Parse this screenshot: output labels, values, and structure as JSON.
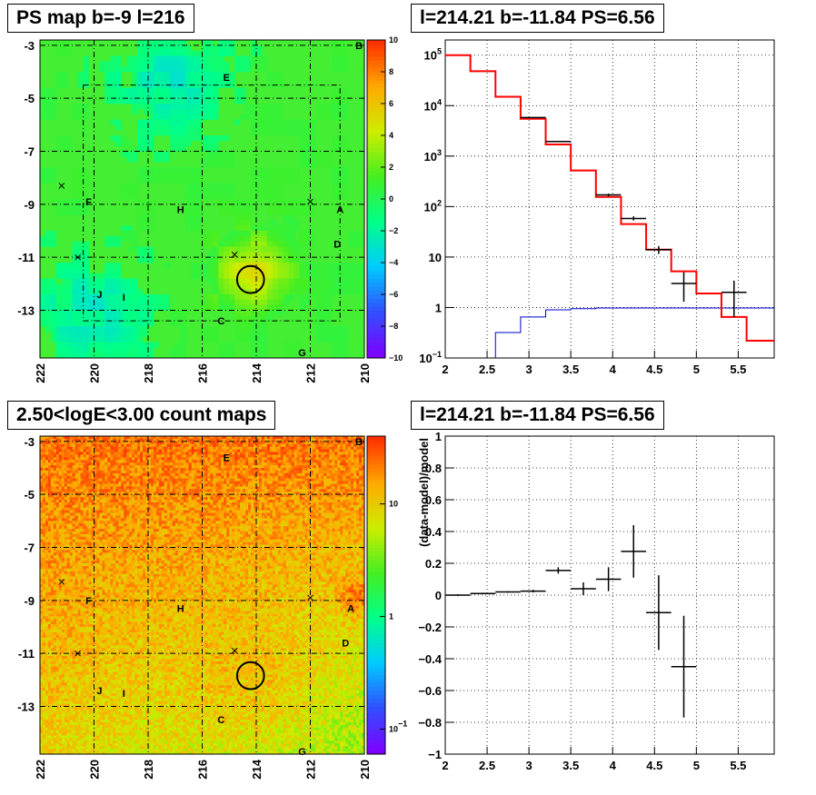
{
  "titles": {
    "ps_map": "PS map b=-9 l=216",
    "spectrum": "l=214.21 b=-11.84 PS=6.56",
    "count_maps": "2.50<logE<3.00 count maps",
    "residual": "l=214.21 b=-11.84 PS=6.56"
  },
  "chart_data": [
    {
      "type": "heatmap",
      "panel": "ps-map",
      "x_ticks": [
        "222",
        "220",
        "218",
        "216",
        "214",
        "212",
        "210"
      ],
      "x_range": [
        222,
        210
      ],
      "y_ticks": [
        "-3",
        "-5",
        "-7",
        "-9",
        "-11",
        "-13"
      ],
      "y_range": [
        -14.8,
        -2.8
      ],
      "colorbar_ticks": [
        "10",
        "8",
        "6",
        "4",
        "2",
        "0",
        "−2",
        "−4",
        "−6",
        "−8",
        "−10"
      ],
      "colorbar_range": [
        -10,
        10
      ],
      "colormap": [
        "#7f00ff",
        "#3050ff",
        "#00ccff",
        "#00ff88",
        "#44ee22",
        "#ccee00",
        "#ffaa00",
        "#ff3000"
      ],
      "background_color": "#44ee33",
      "source_labels": [
        {
          "label": "B",
          "l": 210.2,
          "b": -3.0
        },
        {
          "label": "E",
          "l": 215.1,
          "b": -4.2
        },
        {
          "label": "F",
          "l": 220.2,
          "b": -8.9
        },
        {
          "label": "H",
          "l": 216.8,
          "b": -9.2
        },
        {
          "label": "A",
          "l": 210.9,
          "b": -9.2
        },
        {
          "label": "D",
          "l": 211.0,
          "b": -10.5
        },
        {
          "label": "J",
          "l": 219.8,
          "b": -12.4
        },
        {
          "label": "I",
          "l": 218.9,
          "b": -12.5
        },
        {
          "label": "C",
          "l": 215.3,
          "b": -13.4
        },
        {
          "label": "G",
          "l": 212.3,
          "b": -14.6
        }
      ],
      "crosses": [
        {
          "l": 221.2,
          "b": -8.3
        },
        {
          "l": 220.6,
          "b": -11.0
        },
        {
          "l": 214.8,
          "b": -10.9
        },
        {
          "l": 212.0,
          "b": -8.9
        }
      ],
      "circle": {
        "l": 214.21,
        "b": -11.84,
        "radius_deg": 0.5
      }
    },
    {
      "type": "line",
      "panel": "spectrum",
      "x_range": [
        2.0,
        5.93
      ],
      "x_ticks": [
        "2",
        "2.5",
        "3",
        "3.5",
        "4",
        "4.5",
        "5",
        "5.5"
      ],
      "y_scale": "log",
      "y_range": [
        0.1,
        200000
      ],
      "y_ticks": [
        {
          "value": 0.1,
          "base": "10",
          "exp": "−1"
        },
        {
          "value": 1,
          "base": "1",
          "exp": ""
        },
        {
          "value": 10,
          "base": "10",
          "exp": ""
        },
        {
          "value": 100,
          "base": "10",
          "exp": "2"
        },
        {
          "value": 1000,
          "base": "10",
          "exp": "3"
        },
        {
          "value": 10000,
          "base": "10",
          "exp": "4"
        },
        {
          "value": 100000,
          "base": "10",
          "exp": "5"
        }
      ],
      "grid": true,
      "model_red": [
        {
          "x0": 2.0,
          "x1": 2.3,
          "y": 100000
        },
        {
          "x0": 2.3,
          "x1": 2.6,
          "y": 48000
        },
        {
          "x0": 2.6,
          "x1": 2.9,
          "y": 15000
        },
        {
          "x0": 2.9,
          "x1": 3.2,
          "y": 5500
        },
        {
          "x0": 3.2,
          "x1": 3.5,
          "y": 1700
        },
        {
          "x0": 3.5,
          "x1": 3.8,
          "y": 520
        },
        {
          "x0": 3.8,
          "x1": 4.1,
          "y": 155
        },
        {
          "x0": 4.1,
          "x1": 4.4,
          "y": 45
        },
        {
          "x0": 4.4,
          "x1": 4.7,
          "y": 14
        },
        {
          "x0": 4.7,
          "x1": 5.0,
          "y": 5.2
        },
        {
          "x0": 5.0,
          "x1": 5.3,
          "y": 1.9
        },
        {
          "x0": 5.3,
          "x1": 5.6,
          "y": 0.65
        },
        {
          "x0": 5.6,
          "x1": 5.93,
          "y": 0.22
        }
      ],
      "model_blue": [
        {
          "x0": 2.6,
          "x1": 2.9,
          "y": 0.32
        },
        {
          "x0": 2.9,
          "x1": 3.2,
          "y": 0.65
        },
        {
          "x0": 3.2,
          "x1": 3.5,
          "y": 0.9
        },
        {
          "x0": 3.5,
          "x1": 3.8,
          "y": 0.95
        },
        {
          "x0": 3.8,
          "x1": 5.93,
          "y": 0.98
        }
      ],
      "data_points": [
        {
          "x": 3.05,
          "y": 5800,
          "xerr": 0.15,
          "ylo": 5700,
          "yhi": 5900
        },
        {
          "x": 3.35,
          "y": 1950,
          "xerr": 0.15,
          "ylo": 1900,
          "yhi": 2000
        },
        {
          "x": 3.95,
          "y": 170,
          "xerr": 0.15,
          "ylo": 160,
          "yhi": 180
        },
        {
          "x": 4.25,
          "y": 58,
          "xerr": 0.15,
          "ylo": 53,
          "yhi": 64
        },
        {
          "x": 4.55,
          "y": 14,
          "xerr": 0.15,
          "ylo": 11.5,
          "yhi": 16.5
        },
        {
          "x": 4.85,
          "y": 3.0,
          "xerr": 0.15,
          "ylo": 1.3,
          "yhi": 5.0
        },
        {
          "x": 5.45,
          "y": 2.0,
          "xerr": 0.15,
          "ylo": 0.65,
          "yhi": 3.4
        }
      ]
    },
    {
      "type": "heatmap",
      "panel": "count-map",
      "x_ticks": [
        "222",
        "220",
        "218",
        "216",
        "214",
        "212",
        "210"
      ],
      "x_range": [
        222,
        210
      ],
      "y_ticks": [
        "-3",
        "-5",
        "-7",
        "-9",
        "-11",
        "-13"
      ],
      "y_range": [
        -14.8,
        -2.8
      ],
      "colorbar_scale": "log",
      "colorbar_range": [
        0.06,
        40
      ],
      "colorbar_ticks": [
        {
          "value": 10,
          "base": "10",
          "exp": ""
        },
        {
          "value": 1,
          "base": "1",
          "exp": ""
        },
        {
          "value": 0.1,
          "base": "10",
          "exp": "−1"
        }
      ],
      "colormap": [
        "#7f00ff",
        "#3050ff",
        "#00ccff",
        "#00ff88",
        "#44ee22",
        "#ccee00",
        "#ffaa00",
        "#ff3000"
      ],
      "background_color": "#ff7722",
      "source_labels": [
        {
          "label": "B",
          "l": 210.2,
          "b": -3.0
        },
        {
          "label": "E",
          "l": 215.1,
          "b": -3.6
        },
        {
          "label": "F",
          "l": 220.2,
          "b": -9.0
        },
        {
          "label": "H",
          "l": 216.8,
          "b": -9.3
        },
        {
          "label": "A",
          "l": 210.5,
          "b": -9.3
        },
        {
          "label": "D",
          "l": 210.7,
          "b": -10.6
        },
        {
          "label": "J",
          "l": 219.8,
          "b": -12.4
        },
        {
          "label": "I",
          "l": 218.9,
          "b": -12.5
        },
        {
          "label": "C",
          "l": 215.3,
          "b": -13.5
        },
        {
          "label": "G",
          "l": 212.3,
          "b": -14.7
        }
      ],
      "crosses": [
        {
          "l": 221.2,
          "b": -8.3
        },
        {
          "l": 220.6,
          "b": -11.0
        },
        {
          "l": 214.8,
          "b": -10.9
        },
        {
          "l": 212.0,
          "b": -8.9
        }
      ],
      "circle": {
        "l": 214.21,
        "b": -11.84,
        "radius_deg": 0.5
      }
    },
    {
      "type": "scatter",
      "panel": "residual",
      "ylabel": "(data-model)/model",
      "x_range": [
        2.0,
        5.93
      ],
      "y_range": [
        -1,
        1
      ],
      "x_ticks": [
        "2",
        "2.5",
        "3",
        "3.5",
        "4",
        "4.5",
        "5",
        "5.5"
      ],
      "y_ticks": [
        "1",
        "0.8",
        "0.6",
        "0.4",
        "0.2",
        "0",
        "−0.2",
        "−0.4",
        "−0.6",
        "−0.8",
        "−1"
      ],
      "grid": true,
      "points": [
        {
          "x": 2.15,
          "y": 0.0,
          "xerr": 0.15,
          "yerr": 0.005
        },
        {
          "x": 2.45,
          "y": 0.01,
          "xerr": 0.15,
          "yerr": 0.005
        },
        {
          "x": 2.75,
          "y": 0.02,
          "xerr": 0.15,
          "yerr": 0.005
        },
        {
          "x": 3.05,
          "y": 0.025,
          "xerr": 0.15,
          "yerr": 0.008
        },
        {
          "x": 3.35,
          "y": 0.155,
          "xerr": 0.15,
          "yerr": 0.02
        },
        {
          "x": 3.65,
          "y": 0.04,
          "xerr": 0.15,
          "yerr": 0.04
        },
        {
          "x": 3.95,
          "y": 0.1,
          "xerr": 0.15,
          "yerr": 0.075
        },
        {
          "x": 4.25,
          "y": 0.275,
          "xerr": 0.15,
          "yerr": 0.165
        },
        {
          "x": 4.55,
          "y": -0.11,
          "xerr": 0.15,
          "yerr": 0.235
        },
        {
          "x": 4.85,
          "y": -0.45,
          "xerr": 0.15,
          "yerr": 0.32
        }
      ]
    }
  ]
}
